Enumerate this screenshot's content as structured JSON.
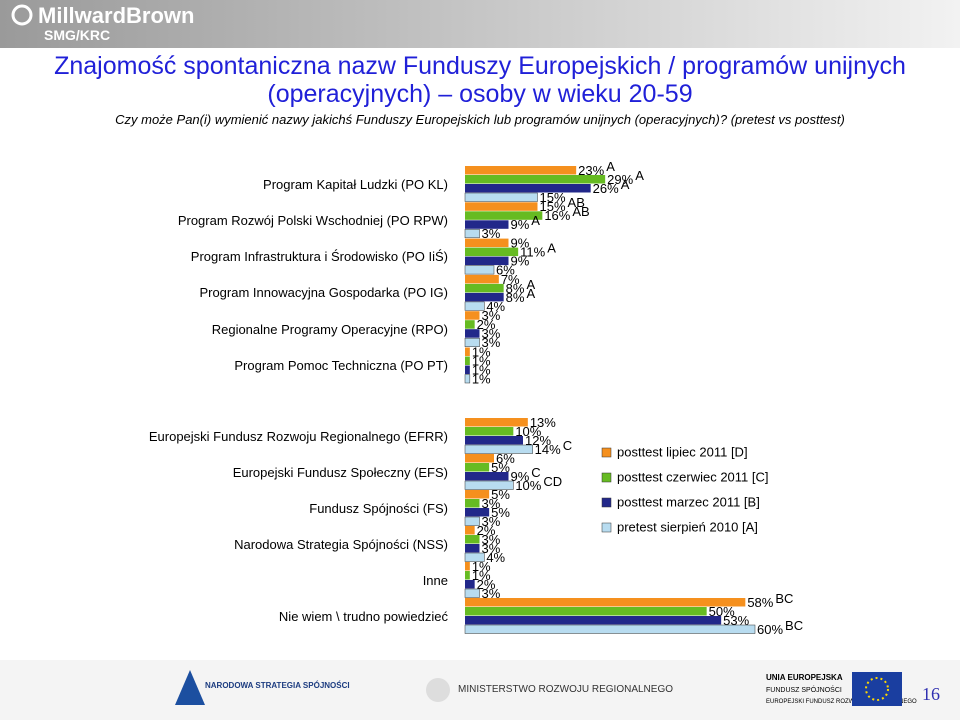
{
  "header": {
    "logo": "MillwardBrown",
    "logo_sub": "SMG/KRC",
    "title": "Znajomość spontaniczna nazw Funduszy Europejskich / programów unijnych (operacyjnych) – osoby w wieku 20-59",
    "subtitle": "Czy może Pan(i) wymienić nazwy jakichś Funduszy Europejskich lub programów unijnych (operacyjnych)? (pretest vs posttest)"
  },
  "chart_data": [
    {
      "type": "bar",
      "orientation": "horizontal",
      "xlim": [
        0,
        60
      ],
      "categories": [
        "Program Kapitał Ludzki (PO KL)",
        "Program Rozwój Polski Wschodniej (PO RPW)",
        "Program Infrastruktura i Środowisko (PO IiŚ)",
        "Program Innowacyjna Gospodarka (PO IG)",
        "Regionalne Programy Operacyjne (RPO)",
        "Program Pomoc Techniczna (PO PT)"
      ],
      "series": [
        {
          "color": "#f5901e",
          "values": [
            23,
            15,
            9,
            7,
            3,
            1
          ],
          "value_labels": [
            "23%",
            "15%",
            "9%",
            "7%",
            "3%",
            "1%"
          ],
          "sig_labels": [
            "A",
            "AB",
            null,
            null,
            null,
            null
          ]
        },
        {
          "color": "#66bb22",
          "values": [
            29,
            16,
            11,
            8,
            2,
            1
          ],
          "value_labels": [
            "29%",
            "16%",
            "11%",
            "8%",
            "2%",
            "1%"
          ],
          "sig_labels": [
            "A",
            "AB",
            "A",
            "A",
            null,
            null
          ]
        },
        {
          "color": "#22288a",
          "values": [
            26,
            9,
            9,
            8,
            3,
            1
          ],
          "value_labels": [
            "26%",
            "9%",
            "9%",
            "8%",
            "3%",
            "1%"
          ],
          "sig_labels": [
            "A",
            "A",
            null,
            "A",
            null,
            null
          ]
        },
        {
          "color": "#b8dcf0",
          "values": [
            15,
            3,
            6,
            4,
            3,
            1
          ],
          "value_labels": [
            "15%",
            "3%",
            "6%",
            "4%",
            "3%",
            "1%"
          ],
          "sig_labels": [
            null,
            null,
            null,
            null,
            null,
            null
          ]
        }
      ]
    },
    {
      "type": "bar",
      "orientation": "horizontal",
      "xlim": [
        0,
        60
      ],
      "legend": "right",
      "categories": [
        "Europejski Fundusz Rozwoju Regionalnego (EFRR)",
        "Europejski Fundusz Społeczny (EFS)",
        "Fundusz Spójności (FS)",
        "Narodowa Strategia Spójności (NSS)",
        "Inne",
        "Nie wiem \\ trudno powiedzieć"
      ],
      "series": [
        {
          "name": "posttest lipiec 2011 [D]",
          "color": "#f5901e",
          "values": [
            13,
            6,
            5,
            2,
            1,
            58
          ],
          "value_labels": [
            "13%",
            "6%",
            "5%",
            "2%",
            "1%",
            "58%"
          ],
          "sig_labels": [
            null,
            null,
            null,
            null,
            null,
            "BC"
          ]
        },
        {
          "name": "posttest czerwiec 2011 [C]",
          "color": "#66bb22",
          "values": [
            10,
            5,
            3,
            3,
            1,
            50
          ],
          "value_labels": [
            "10%",
            "5%",
            "3%",
            "3%",
            "1%",
            "50%"
          ],
          "sig_labels": [
            null,
            null,
            null,
            null,
            null,
            null
          ]
        },
        {
          "name": "posttest marzec 2011  [B]",
          "color": "#22288a",
          "values": [
            12,
            9,
            5,
            3,
            2,
            53
          ],
          "value_labels": [
            "12%",
            "9%",
            "5%",
            "3%",
            "2%",
            "53%"
          ],
          "sig_labels": [
            null,
            "C",
            null,
            null,
            null,
            null
          ]
        },
        {
          "name": "pretest sierpień 2010 [A]",
          "color": "#b8dcf0",
          "values": [
            14,
            10,
            3,
            4,
            3,
            60
          ],
          "value_labels": [
            "14%",
            "10%",
            "3%",
            "4%",
            "3%",
            "60%"
          ],
          "sig_labels": [
            "C",
            "CD",
            null,
            null,
            null,
            "BC"
          ]
        }
      ]
    }
  ],
  "footer": {
    "nss": "NARODOWA STRATEGIA SPÓJNOŚCI",
    "ministry": "MINISTERSTWO ROZWOJU REGIONALNEGO",
    "eu": "UNIA EUROPEJSKA",
    "fund1": "FUNDUSZ SPÓJNOŚCI",
    "fund2": "EUROPEJSKI FUNDUSZ ROZWOJU REGIONALNEGO",
    "page": "16"
  }
}
